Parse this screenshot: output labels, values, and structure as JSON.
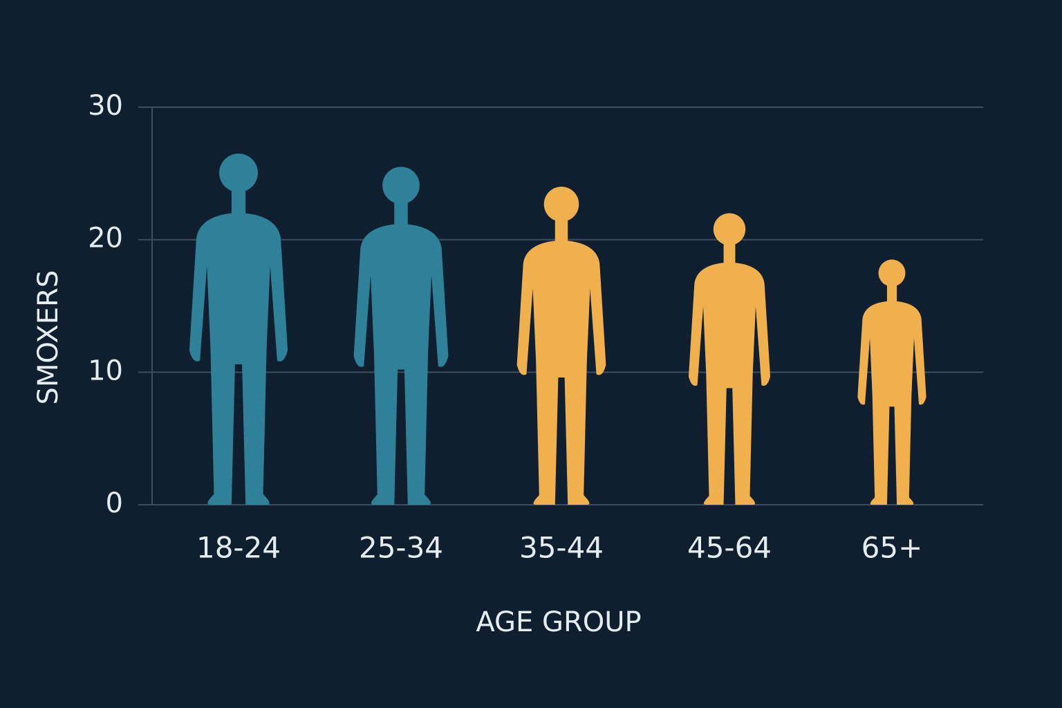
{
  "chart_data": {
    "type": "pictograph",
    "x_label": "AGE GROUP",
    "y_label": "SMOXERS",
    "categories": [
      "18-24",
      "25-34",
      "35-44",
      "45-64",
      "65+"
    ],
    "values": [
      26.5,
      25.5,
      24,
      22,
      18.5
    ],
    "colors": [
      "#2f8199",
      "#2f8199",
      "#f0b04e",
      "#f0b04e",
      "#f0b04e"
    ],
    "ylim": [
      0,
      30
    ],
    "yticks": [
      0,
      10,
      20,
      30
    ],
    "grid": true
  }
}
